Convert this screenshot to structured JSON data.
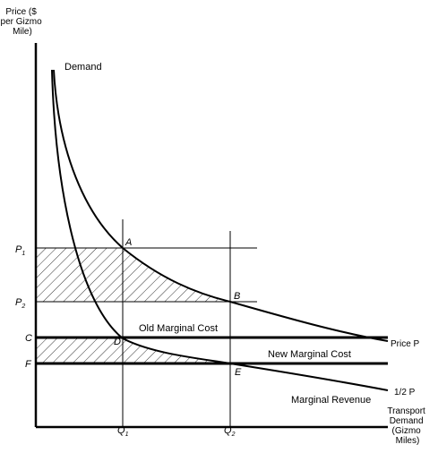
{
  "axes": {
    "y_label": [
      "Price ($",
      "per Gizmo",
      "Mile)"
    ],
    "x_label": [
      "Transport",
      "Demand",
      "(Gizmo",
      "Miles)"
    ]
  },
  "curves": {
    "demand": "Demand",
    "price": "Price P",
    "half_price": "1/2 P",
    "marginal_revenue": "Marginal Revenue"
  },
  "lines": {
    "old_mc": "Old Marginal Cost",
    "new_mc": "New Marginal Cost"
  },
  "levels": {
    "p1": {
      "base": "P",
      "sub": "1"
    },
    "p2": {
      "base": "P",
      "sub": "2"
    },
    "c": "C",
    "f": "F"
  },
  "quantities": {
    "q1": {
      "base": "Q",
      "sub": "1"
    },
    "q2": {
      "base": "Q",
      "sub": "2"
    }
  },
  "points": {
    "a": "A",
    "b": "B",
    "d": "D",
    "e": "E"
  }
}
